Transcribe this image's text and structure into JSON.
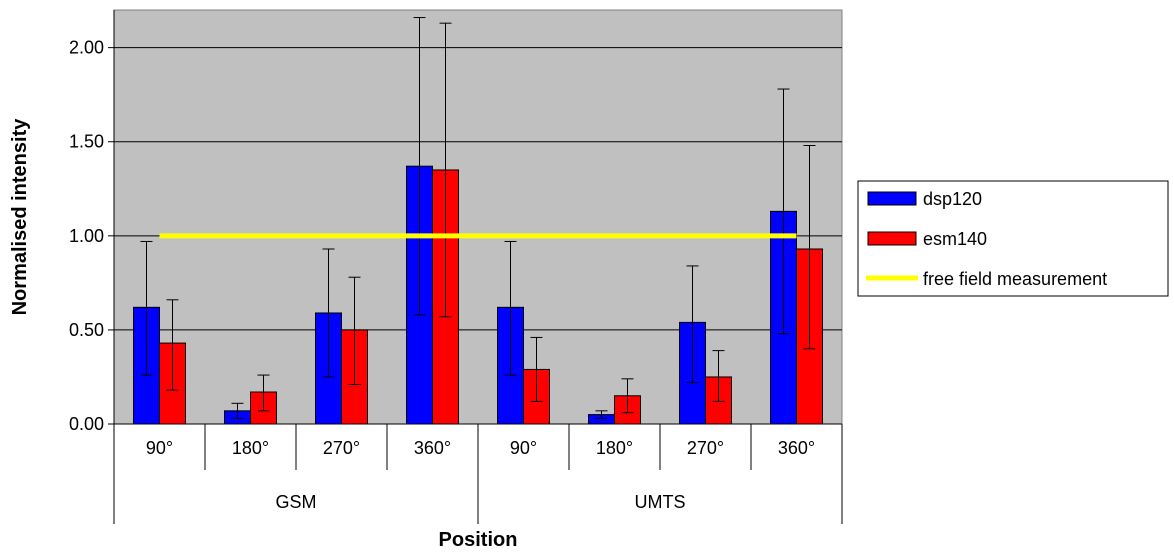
{
  "chart_data": {
    "type": "bar",
    "xlabel": "Position",
    "ylabel": "Normalised intensity",
    "ylim": [
      0,
      2.2
    ],
    "yticks": [
      "0.00",
      "0.50",
      "1.00",
      "1.50",
      "2.00"
    ],
    "groups": [
      {
        "label": "GSM",
        "categories": [
          "90°",
          "180°",
          "270°",
          "360°"
        ]
      },
      {
        "label": "UMTS",
        "categories": [
          "90°",
          "180°",
          "270°",
          "360°"
        ]
      }
    ],
    "series": [
      {
        "name": "dsp120",
        "color": "#0000ff",
        "values": [
          0.62,
          0.07,
          0.59,
          1.37,
          0.62,
          0.05,
          0.54,
          1.13
        ],
        "error_low": [
          0.26,
          0.03,
          0.25,
          0.58,
          0.26,
          0.03,
          0.22,
          0.48
        ],
        "error_high": [
          0.97,
          0.11,
          0.93,
          2.16,
          0.97,
          0.07,
          0.84,
          1.78
        ]
      },
      {
        "name": "esm140",
        "color": "#ff0000",
        "values": [
          0.43,
          0.17,
          0.5,
          1.35,
          0.29,
          0.15,
          0.25,
          0.93
        ],
        "error_low": [
          0.18,
          0.07,
          0.21,
          0.57,
          0.12,
          0.06,
          0.12,
          0.4
        ],
        "error_high": [
          0.66,
          0.26,
          0.78,
          2.13,
          0.46,
          0.24,
          0.39,
          1.48
        ]
      }
    ],
    "reference_line": {
      "name": "free field measurement",
      "value": 1.0,
      "color": "#ffff00"
    },
    "plot_background": "#c0c0c0",
    "grid": true,
    "legend_position": "right"
  }
}
